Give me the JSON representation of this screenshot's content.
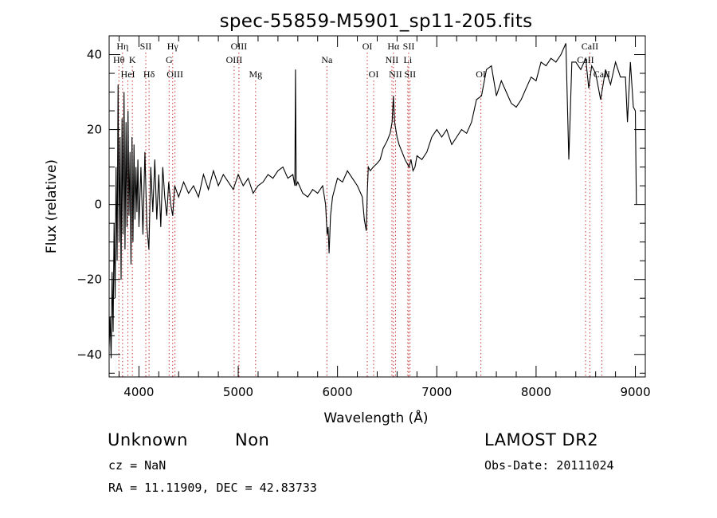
{
  "title": "spec-55859-M5901_sp11-205.fits",
  "footer": {
    "class_label": "Unknown",
    "subclass_label": "Non",
    "survey": "LAMOST DR2",
    "cz_text": "cz = NaN",
    "obs_date_text": "Obs-Date: 20111024",
    "coords_text": "RA =  11.11909, DEC =  42.83733"
  },
  "chart_data": {
    "type": "line",
    "title": "spec-55859-M5901_sp11-205.fits",
    "xlabel": "Wavelength (Å)",
    "ylabel": "Flux (relative)",
    "xlim": [
      3700,
      9100
    ],
    "ylim": [
      -46,
      45
    ],
    "x_ticks": [
      4000,
      5000,
      6000,
      7000,
      8000,
      9000
    ],
    "y_ticks": [
      -40,
      -20,
      0,
      20,
      40
    ],
    "x_minor_step": 200,
    "y_minor_step": 5,
    "grid": false,
    "series": [
      {
        "points": [
          [
            3700,
            -38
          ],
          [
            3710,
            -30
          ],
          [
            3720,
            -41
          ],
          [
            3730,
            -18
          ],
          [
            3740,
            -34
          ],
          [
            3750,
            -5
          ],
          [
            3760,
            -25
          ],
          [
            3770,
            10
          ],
          [
            3780,
            -15
          ],
          [
            3790,
            32
          ],
          [
            3800,
            -10
          ],
          [
            3810,
            18
          ],
          [
            3820,
            -20
          ],
          [
            3830,
            23
          ],
          [
            3840,
            -8
          ],
          [
            3850,
            30
          ],
          [
            3860,
            -12
          ],
          [
            3870,
            22
          ],
          [
            3880,
            -6
          ],
          [
            3890,
            25
          ],
          [
            3900,
            -3
          ],
          [
            3910,
            14
          ],
          [
            3920,
            -16
          ],
          [
            3930,
            18
          ],
          [
            3940,
            -10
          ],
          [
            3950,
            16
          ],
          [
            3960,
            -4
          ],
          [
            3970,
            10
          ],
          [
            3980,
            -2
          ],
          [
            3990,
            12
          ],
          [
            4000,
            -6
          ],
          [
            4020,
            10
          ],
          [
            4040,
            -8
          ],
          [
            4060,
            14
          ],
          [
            4080,
            -6
          ],
          [
            4100,
            -12
          ],
          [
            4120,
            10
          ],
          [
            4140,
            -2
          ],
          [
            4160,
            12
          ],
          [
            4180,
            -4
          ],
          [
            4200,
            8
          ],
          [
            4220,
            -6
          ],
          [
            4240,
            10
          ],
          [
            4260,
            2
          ],
          [
            4280,
            -3
          ],
          [
            4300,
            6
          ],
          [
            4320,
            0
          ],
          [
            4340,
            -3
          ],
          [
            4360,
            5
          ],
          [
            4400,
            2
          ],
          [
            4450,
            6
          ],
          [
            4500,
            3
          ],
          [
            4550,
            5
          ],
          [
            4600,
            2
          ],
          [
            4650,
            8
          ],
          [
            4700,
            4
          ],
          [
            4750,
            9
          ],
          [
            4800,
            5
          ],
          [
            4850,
            8
          ],
          [
            4900,
            6
          ],
          [
            4950,
            4
          ],
          [
            5000,
            8
          ],
          [
            5050,
            5
          ],
          [
            5100,
            7
          ],
          [
            5150,
            3
          ],
          [
            5200,
            5
          ],
          [
            5250,
            6
          ],
          [
            5300,
            8
          ],
          [
            5350,
            7
          ],
          [
            5400,
            9
          ],
          [
            5450,
            10
          ],
          [
            5500,
            7
          ],
          [
            5550,
            8
          ],
          [
            5570,
            5
          ],
          [
            5577,
            36
          ],
          [
            5584,
            5
          ],
          [
            5600,
            6
          ],
          [
            5650,
            3
          ],
          [
            5700,
            2
          ],
          [
            5750,
            4
          ],
          [
            5800,
            3
          ],
          [
            5850,
            5
          ],
          [
            5880,
            0
          ],
          [
            5895,
            -8
          ],
          [
            5905,
            -6
          ],
          [
            5915,
            -13
          ],
          [
            5930,
            -3
          ],
          [
            5950,
            2
          ],
          [
            6000,
            7
          ],
          [
            6050,
            6
          ],
          [
            6100,
            9
          ],
          [
            6150,
            7
          ],
          [
            6200,
            5
          ],
          [
            6250,
            2
          ],
          [
            6270,
            -4
          ],
          [
            6290,
            -7
          ],
          [
            6300,
            3
          ],
          [
            6310,
            10
          ],
          [
            6330,
            9
          ],
          [
            6360,
            10
          ],
          [
            6400,
            11
          ],
          [
            6430,
            12
          ],
          [
            6460,
            15
          ],
          [
            6500,
            17
          ],
          [
            6530,
            19
          ],
          [
            6550,
            22
          ],
          [
            6563,
            29
          ],
          [
            6575,
            22
          ],
          [
            6600,
            18
          ],
          [
            6620,
            16
          ],
          [
            6650,
            14
          ],
          [
            6680,
            12
          ],
          [
            6700,
            11
          ],
          [
            6720,
            10
          ],
          [
            6740,
            12
          ],
          [
            6760,
            9
          ],
          [
            6780,
            10
          ],
          [
            6800,
            13
          ],
          [
            6850,
            12
          ],
          [
            6900,
            14
          ],
          [
            6950,
            18
          ],
          [
            7000,
            20
          ],
          [
            7050,
            18
          ],
          [
            7100,
            20
          ],
          [
            7150,
            16
          ],
          [
            7200,
            18
          ],
          [
            7250,
            20
          ],
          [
            7300,
            19
          ],
          [
            7350,
            22
          ],
          [
            7400,
            28
          ],
          [
            7450,
            29
          ],
          [
            7500,
            36
          ],
          [
            7550,
            37
          ],
          [
            7600,
            29
          ],
          [
            7650,
            33
          ],
          [
            7700,
            30
          ],
          [
            7750,
            27
          ],
          [
            7800,
            26
          ],
          [
            7850,
            28
          ],
          [
            7900,
            31
          ],
          [
            7950,
            34
          ],
          [
            8000,
            33
          ],
          [
            8050,
            38
          ],
          [
            8100,
            37
          ],
          [
            8150,
            39
          ],
          [
            8200,
            38
          ],
          [
            8250,
            40
          ],
          [
            8300,
            43
          ],
          [
            8330,
            12
          ],
          [
            8360,
            38
          ],
          [
            8400,
            38
          ],
          [
            8450,
            36
          ],
          [
            8500,
            39
          ],
          [
            8530,
            31
          ],
          [
            8560,
            37
          ],
          [
            8600,
            35
          ],
          [
            8650,
            28
          ],
          [
            8700,
            36
          ],
          [
            8750,
            32
          ],
          [
            8800,
            38
          ],
          [
            8850,
            34
          ],
          [
            8900,
            34
          ],
          [
            8920,
            22
          ],
          [
            8950,
            38
          ],
          [
            8980,
            26
          ],
          [
            9000,
            25
          ],
          [
            9010,
            0
          ]
        ]
      }
    ],
    "annotation_lines": [
      {
        "label": "Hη",
        "x": 3835,
        "row": 1
      },
      {
        "label": "Hθ",
        "x": 3798,
        "row": 2
      },
      {
        "label": "K",
        "x": 3934,
        "row": 2
      },
      {
        "label": "HeI",
        "x": 3889,
        "row": 3
      },
      {
        "label": "SII",
        "x": 4069,
        "row": 1
      },
      {
        "label": "Hδ",
        "x": 4102,
        "row": 3
      },
      {
        "label": "Hγ",
        "x": 4340,
        "row": 1
      },
      {
        "label": "G",
        "x": 4304,
        "row": 2
      },
      {
        "label": "OIII",
        "x": 4363,
        "row": 3
      },
      {
        "label": "OIII",
        "x": 5007,
        "row": 1
      },
      {
        "label": "OIII",
        "x": 4959,
        "row": 2
      },
      {
        "label": "Mg",
        "x": 5175,
        "row": 3
      },
      {
        "label": "Na",
        "x": 5893,
        "row": 2
      },
      {
        "label": "OI",
        "x": 6300,
        "row": 1
      },
      {
        "label": "OI",
        "x": 6364,
        "row": 3
      },
      {
        "label": "Hα",
        "x": 6563,
        "row": 1
      },
      {
        "label": "SII",
        "x": 6717,
        "row": 1
      },
      {
        "label": "NII",
        "x": 6548,
        "row": 2
      },
      {
        "label": "Li",
        "x": 6708,
        "row": 2
      },
      {
        "label": "NII",
        "x": 6584,
        "row": 3
      },
      {
        "label": "SII",
        "x": 6731,
        "row": 3
      },
      {
        "label": "OI",
        "x": 7444,
        "row": 3
      },
      {
        "label": "CaII",
        "x": 8542,
        "row": 1
      },
      {
        "label": "CaII",
        "x": 8498,
        "row": 2
      },
      {
        "label": "CaII",
        "x": 8662,
        "row": 3
      }
    ]
  }
}
